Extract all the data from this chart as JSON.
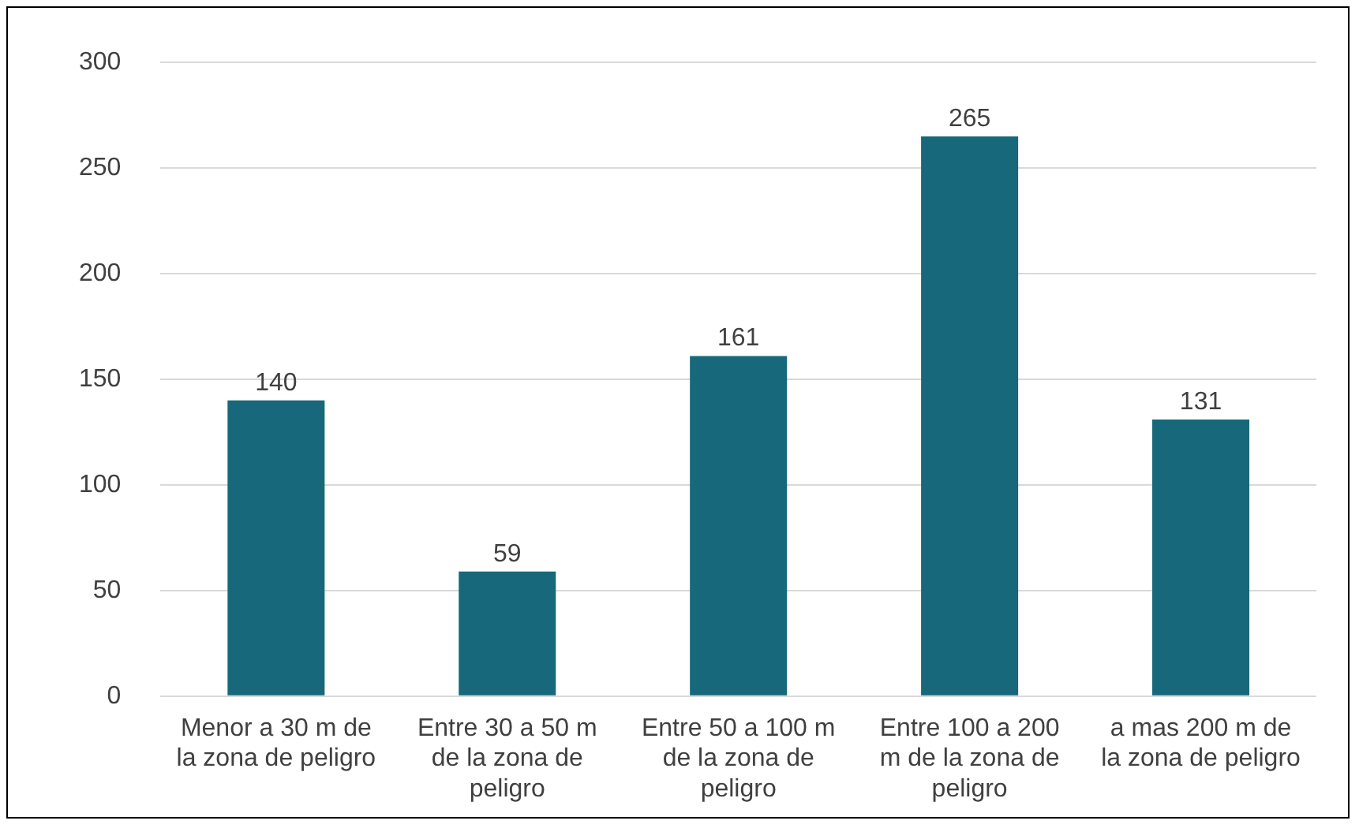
{
  "chart_data": {
    "type": "bar",
    "categories": [
      "Menor a 30 m de la zona de peligro",
      "Entre 30 a 50 m de la zona de peligro",
      "Entre 50 a 100 m de la zona de peligro",
      "Entre 100 a 200 m de la zona de peligro",
      "a mas 200 m de la zona de peligro"
    ],
    "values": [
      140,
      59,
      161,
      265,
      131
    ],
    "color": "#17687a",
    "ylim": [
      0,
      300
    ],
    "yticks": [
      0,
      50,
      100,
      150,
      200,
      250,
      300
    ],
    "grid": "y",
    "data_labels": true,
    "legend": false
  }
}
